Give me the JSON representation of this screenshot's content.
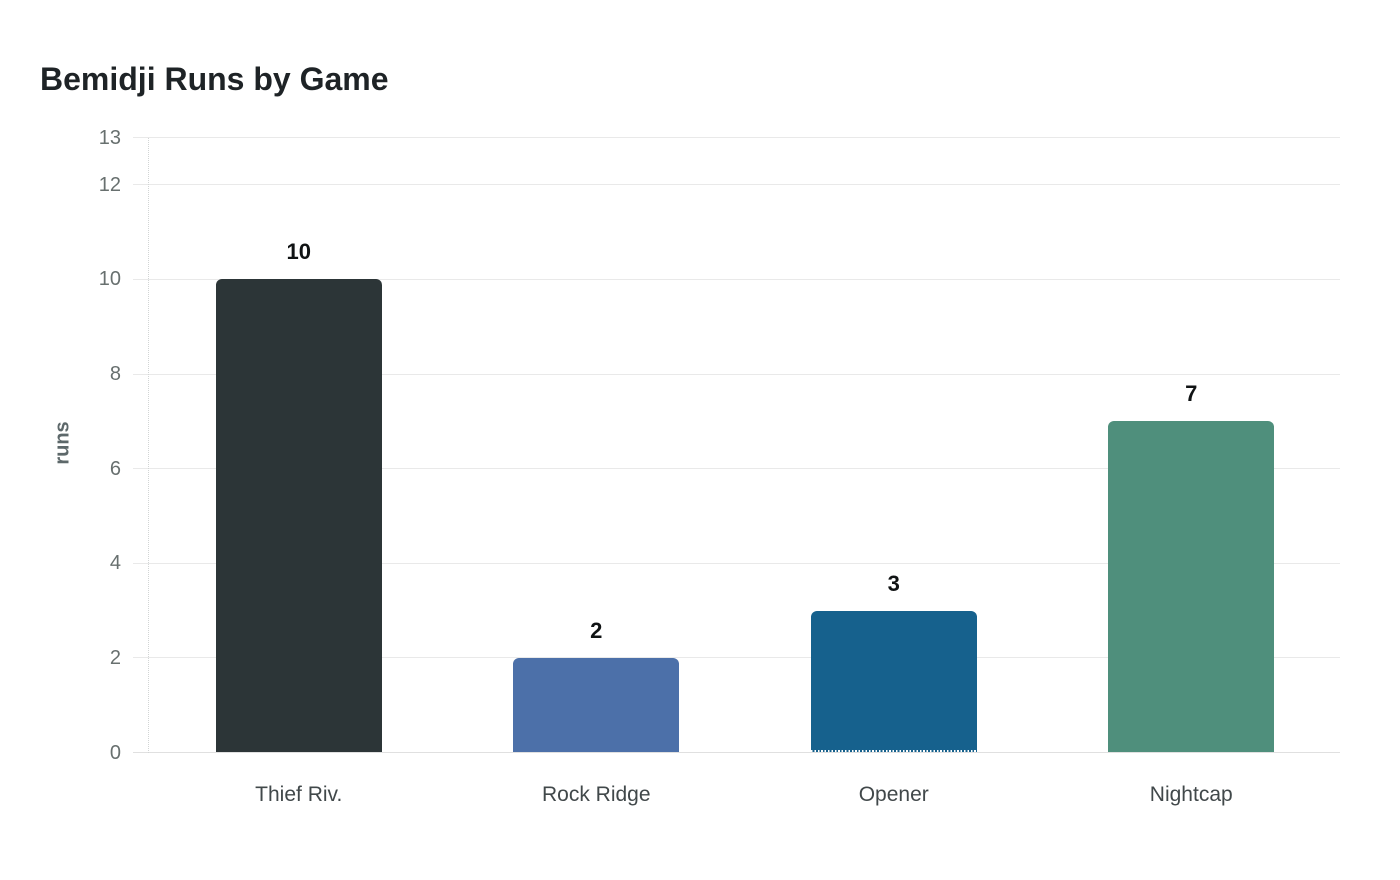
{
  "page": {
    "background": "#ffffff"
  },
  "chart_data": {
    "type": "bar",
    "title": "Bemidji Runs by Game",
    "xlabel": "",
    "ylabel": "runs",
    "categories": [
      "Thief Riv.",
      "Rock Ridge",
      "Opener",
      "Nightcap"
    ],
    "values": [
      10,
      2,
      3,
      7
    ],
    "value_labels": [
      "10",
      "2",
      "3",
      "7"
    ],
    "bar_colors": [
      "#2c3537",
      "#4c70a9",
      "#16618d",
      "#4f8f7c"
    ],
    "bar_base_dotted": [
      false,
      false,
      true,
      false
    ],
    "yticks": [
      0,
      2,
      4,
      6,
      8,
      10,
      12,
      13
    ],
    "ylim": [
      0,
      13
    ],
    "grid": "horizontal gridlines on",
    "legend": "none",
    "style": {
      "title_color": "#1e2326",
      "tick_label_color": "#68706f",
      "category_label_color": "#41484a",
      "value_label_color": "#101314",
      "y_axis_label_color": "#5d686a",
      "gridline_color": "#e9e9e9",
      "axis_line_color": "#d2d5d5",
      "background": "#ffffff"
    }
  }
}
